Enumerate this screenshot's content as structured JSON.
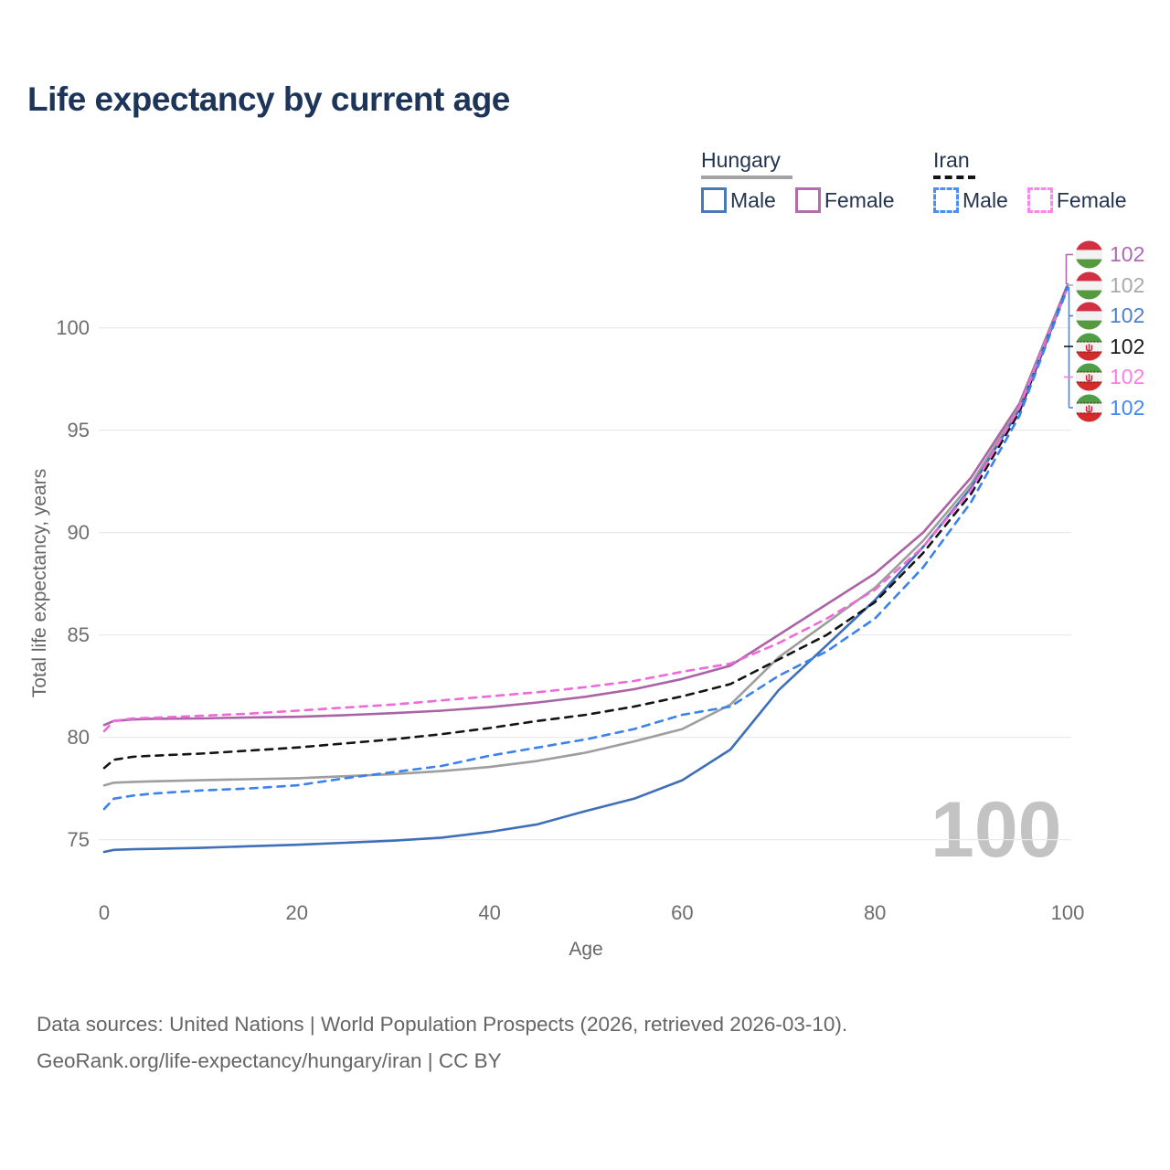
{
  "title": "Life expectancy by current age",
  "legend": {
    "groups": [
      {
        "label": "Hungary",
        "line_style": "solid",
        "underline_color": "#a3a3a3",
        "items": [
          {
            "label": "Male",
            "color": "#4a79b8"
          },
          {
            "label": "Female",
            "color": "#b56cae"
          }
        ]
      },
      {
        "label": "Iran",
        "line_style": "dashed",
        "underline_color": "#141414",
        "items": [
          {
            "label": "Male",
            "color": "#4a8ef7"
          },
          {
            "label": "Female",
            "color": "#fd86ea"
          }
        ]
      }
    ]
  },
  "right_labels": [
    {
      "flag": "hungary",
      "value": "102",
      "color": "#ad68b0"
    },
    {
      "flag": "hungary",
      "value": "102",
      "color": "#a9a9a9"
    },
    {
      "flag": "hungary",
      "value": "102",
      "color": "#4f7fca"
    },
    {
      "flag": "iran",
      "value": "102",
      "color": "#1a1a1a"
    },
    {
      "flag": "iran",
      "value": "102",
      "color": "#f57fe3"
    },
    {
      "flag": "iran",
      "value": "102",
      "color": "#4187f5"
    }
  ],
  "watermark": "100",
  "chart_data": {
    "type": "line",
    "title": "Life expectancy by current age",
    "xlabel": "Age",
    "ylabel": "Total life expectancy, years",
    "x_ticks": [
      0,
      20,
      40,
      60,
      80,
      100
    ],
    "y_ticks": [
      75,
      80,
      85,
      90,
      95,
      100
    ],
    "xlim": [
      0,
      100
    ],
    "ylim": [
      73.5,
      102.5
    ],
    "grid": "horizontal",
    "legend_position": "top-right",
    "x": [
      0,
      1,
      3,
      5,
      10,
      15,
      20,
      25,
      30,
      35,
      40,
      45,
      50,
      55,
      60,
      65,
      70,
      75,
      80,
      85,
      90,
      95,
      100
    ],
    "series": [
      {
        "name": "Hungary Female",
        "country": "Hungary",
        "sex": "Female",
        "color": "#aa64a5",
        "dash": false,
        "values": [
          80.6,
          80.8,
          80.87,
          80.9,
          80.92,
          80.97,
          81.0,
          81.08,
          81.18,
          81.3,
          81.47,
          81.7,
          81.98,
          82.35,
          82.85,
          83.5,
          85.0,
          86.5,
          88.0,
          90.0,
          92.7,
          96.3,
          102.12
        ]
      },
      {
        "name": "Hungary Both sexes",
        "country": "Hungary",
        "sex": "Both",
        "color": "#9e9e9e",
        "dash": false,
        "values": [
          77.65,
          77.78,
          77.82,
          77.85,
          77.9,
          77.95,
          78.0,
          78.1,
          78.2,
          78.35,
          78.55,
          78.85,
          79.25,
          79.8,
          80.4,
          81.6,
          83.9,
          85.6,
          87.3,
          89.6,
          92.4,
          96.15,
          102.08
        ]
      },
      {
        "name": "Hungary Male",
        "country": "Hungary",
        "sex": "Male",
        "color": "#3e6fb8",
        "dash": false,
        "values": [
          74.4,
          74.5,
          74.53,
          74.55,
          74.6,
          74.68,
          74.75,
          74.85,
          74.95,
          75.1,
          75.38,
          75.75,
          76.4,
          77.0,
          77.9,
          79.4,
          82.3,
          84.5,
          86.7,
          89.3,
          92.2,
          96.0,
          102.05
        ]
      },
      {
        "name": "Iran Both sexes",
        "country": "Iran",
        "sex": "Both",
        "color": "#141414",
        "dash": true,
        "values": [
          78.5,
          78.9,
          79.05,
          79.1,
          79.2,
          79.35,
          79.5,
          79.7,
          79.9,
          80.15,
          80.45,
          80.8,
          81.1,
          81.5,
          82.0,
          82.6,
          83.8,
          85.0,
          86.6,
          89.0,
          91.9,
          95.9,
          102.02
        ]
      },
      {
        "name": "Iran Female",
        "country": "Iran",
        "sex": "Female",
        "color": "#ee6ada",
        "dash": true,
        "values": [
          80.3,
          80.8,
          80.92,
          80.95,
          81.05,
          81.15,
          81.3,
          81.45,
          81.6,
          81.8,
          82.0,
          82.2,
          82.45,
          82.75,
          83.2,
          83.6,
          84.6,
          85.8,
          87.2,
          89.3,
          92.1,
          96.1,
          101.98
        ]
      },
      {
        "name": "Iran Male",
        "country": "Iran",
        "sex": "Male",
        "color": "#3b82ec",
        "dash": true,
        "values": [
          76.5,
          77.0,
          77.15,
          77.25,
          77.4,
          77.5,
          77.65,
          78.0,
          78.3,
          78.6,
          79.1,
          79.5,
          79.9,
          80.4,
          81.1,
          81.5,
          83.0,
          84.2,
          85.8,
          88.3,
          91.5,
          95.7,
          101.95
        ]
      }
    ]
  },
  "footer": {
    "line1": "Data sources: United Nations | World Population Prospects (2026, retrieved 2026-03-10).",
    "line2": "GeoRank.org/life-expectancy/hungary/iran | CC BY"
  }
}
